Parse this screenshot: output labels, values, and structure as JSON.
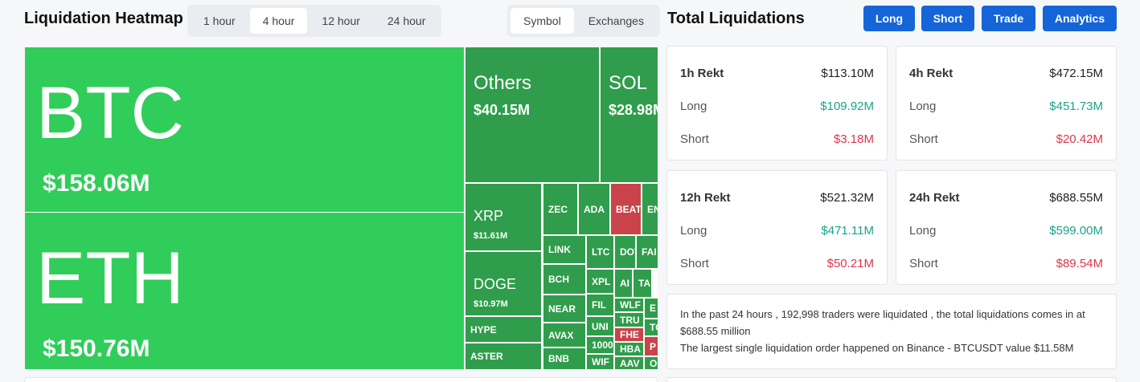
{
  "header": {
    "title": "Liquidation Heatmap",
    "time_tabs": [
      "1 hour",
      "4 hour",
      "12 hour",
      "24 hour"
    ],
    "active_time_tab": 1,
    "view_tabs": [
      "Symbol",
      "Exchanges"
    ],
    "active_view_tab": 0
  },
  "panel": {
    "title": "Total Liquidations",
    "buttons": [
      "Long",
      "Short",
      "Trade",
      "Analytics"
    ],
    "cards": [
      {
        "title": "1h Rekt",
        "total": "$113.10M",
        "rows": [
          {
            "label": "Long",
            "value": "$109.92M"
          },
          {
            "label": "Short",
            "value": "$3.18M"
          }
        ]
      },
      {
        "title": "4h Rekt",
        "total": "$472.15M",
        "rows": [
          {
            "label": "Long",
            "value": "$451.73M"
          },
          {
            "label": "Short",
            "value": "$20.42M"
          }
        ]
      },
      {
        "title": "12h Rekt",
        "total": "$521.32M",
        "rows": [
          {
            "label": "Long",
            "value": "$471.11M"
          },
          {
            "label": "Short",
            "value": "$50.21M"
          }
        ]
      },
      {
        "title": "24h Rekt",
        "total": "$688.55M",
        "rows": [
          {
            "label": "Long",
            "value": "$599.00M"
          },
          {
            "label": "Short",
            "value": "$89.54M"
          }
        ]
      }
    ],
    "summary": [
      "In the past 24 hours , 192,998 traders were liquidated , the total liquidations comes in at $688.55 million",
      "The largest single liquidation order happened on Binance - BTCUSDT value $11.58M"
    ]
  },
  "heatmap": {
    "tiles": [
      {
        "label": "BTC",
        "value": "$158.06M",
        "color": "#30cd5a"
      },
      {
        "label": "ETH",
        "value": "$150.76M",
        "color": "#30cd5a"
      },
      {
        "label": "Others",
        "value": "$40.15M",
        "color": "#2f9d4b"
      },
      {
        "label": "SOL",
        "value": "$28.98M",
        "color": "#2f9d4b"
      },
      {
        "label": "XRP",
        "value": "$11.61M",
        "color": "#2f9d4b"
      },
      {
        "label": "DOGE",
        "value": "$10.97M",
        "color": "#2f9d4b"
      },
      {
        "label": "HYPE",
        "color": "#2f9d4b"
      },
      {
        "label": "ASTER",
        "color": "#2f9d4b"
      },
      {
        "label": "ZEC",
        "color": "#2f9d4b"
      },
      {
        "label": "ADA",
        "color": "#2f9d4b"
      },
      {
        "label": "BEAT",
        "color": "#c9444a"
      },
      {
        "label": "EN",
        "color": "#2f9d4b"
      },
      {
        "label": "LINK",
        "color": "#2f9d4b"
      },
      {
        "label": "BCH",
        "color": "#2f9d4b"
      },
      {
        "label": "NEAR",
        "color": "#2f9d4b"
      },
      {
        "label": "AVAX",
        "color": "#2f9d4b"
      },
      {
        "label": "BNB",
        "color": "#2f9d4b"
      },
      {
        "label": "LTC",
        "color": "#2f9d4b"
      },
      {
        "label": "DOT",
        "color": "#2f9d4b"
      },
      {
        "label": "FAI",
        "color": "#2f9d4b"
      },
      {
        "label": "XPL",
        "color": "#2f9d4b"
      },
      {
        "label": "AI",
        "color": "#2f9d4b"
      },
      {
        "label": "TA",
        "color": "#2f9d4b"
      },
      {
        "label": "FIL",
        "color": "#2f9d4b"
      },
      {
        "label": "UNI",
        "color": "#2f9d4b"
      },
      {
        "label": "1000",
        "color": "#2f9d4b"
      },
      {
        "label": "WIF",
        "color": "#2f9d4b"
      },
      {
        "label": "WLF",
        "color": "#2f9d4b"
      },
      {
        "label": "E",
        "color": "#2f9d4b"
      },
      {
        "label": "TRU",
        "color": "#2f9d4b"
      },
      {
        "label": "TO",
        "color": "#2f9d4b"
      },
      {
        "label": "FHE",
        "color": "#c9444a"
      },
      {
        "label": "HBA",
        "color": "#2f9d4b"
      },
      {
        "label": "P",
        "color": "#c9444a"
      },
      {
        "label": "AAV",
        "color": "#2f9d4b"
      },
      {
        "label": "O",
        "color": "#2f9d4b"
      }
    ]
  }
}
